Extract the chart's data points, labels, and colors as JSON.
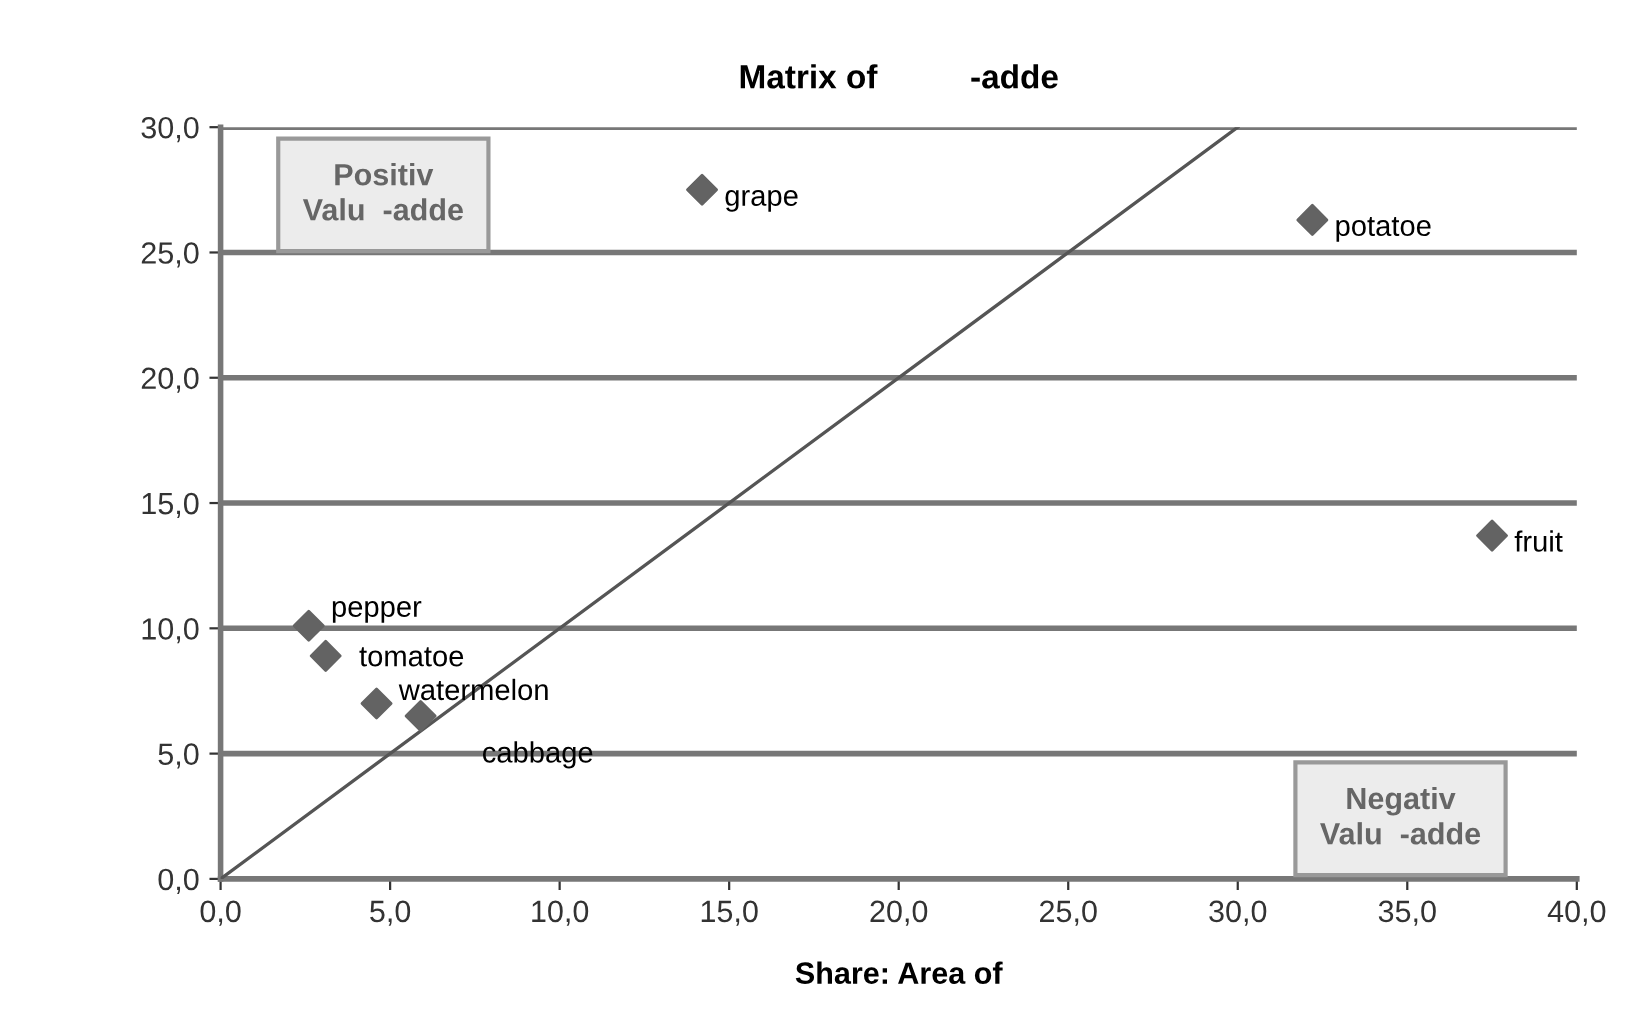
{
  "chart_data": {
    "type": "scatter",
    "title": "Matrix of          -adde",
    "xlabel": "Share: Area of",
    "xlim": [
      0,
      40
    ],
    "ylim": [
      0,
      30
    ],
    "xticks": [
      {
        "value": 0,
        "label": "0,0"
      },
      {
        "value": 5,
        "label": "5,0"
      },
      {
        "value": 10,
        "label": "10,0"
      },
      {
        "value": 15,
        "label": "15,0"
      },
      {
        "value": 20,
        "label": "20,0"
      },
      {
        "value": 25,
        "label": "25,0"
      },
      {
        "value": 30,
        "label": "30,0"
      },
      {
        "value": 35,
        "label": "35,0"
      },
      {
        "value": 40,
        "label": "40,0"
      }
    ],
    "yticks": [
      {
        "value": 0,
        "label": "0,0"
      },
      {
        "value": 5,
        "label": "5,0"
      },
      {
        "value": 10,
        "label": "10,0"
      },
      {
        "value": 15,
        "label": "15,0"
      },
      {
        "value": 20,
        "label": "20,0"
      },
      {
        "value": 25,
        "label": "25,0"
      },
      {
        "value": 30,
        "label": "30,0"
      }
    ],
    "grid": "y",
    "marker": "diamond",
    "legend": false,
    "series": [
      {
        "type": "line",
        "color": "#555555",
        "marker": "none",
        "x": [
          0,
          30
        ],
        "values": [
          0,
          30
        ]
      },
      {
        "name": "grape",
        "color": "#636363",
        "x": [
          14.2
        ],
        "values": [
          27.5
        ]
      },
      {
        "name": "potatoe",
        "color": "#636363",
        "x": [
          32.2
        ],
        "values": [
          26.3
        ]
      },
      {
        "name": "fruit",
        "color": "#636363",
        "x": [
          37.5
        ],
        "values": [
          13.7
        ]
      },
      {
        "name": "pepper",
        "color": "#636363",
        "x": [
          2.6
        ],
        "values": [
          10.1
        ]
      },
      {
        "name": "tomatoe",
        "color": "#636363",
        "x": [
          3.1
        ],
        "values": [
          8.9
        ]
      },
      {
        "name": "watermelon",
        "color": "#636363",
        "x": [
          4.6
        ],
        "values": [
          7.0
        ]
      },
      {
        "name": "cabbage",
        "color": "#636363",
        "x": [
          5.9
        ],
        "values": [
          6.5
        ]
      }
    ],
    "annotations": [
      "Positiv\nValu  -adde",
      "Negativ\nValu  -adde"
    ]
  }
}
